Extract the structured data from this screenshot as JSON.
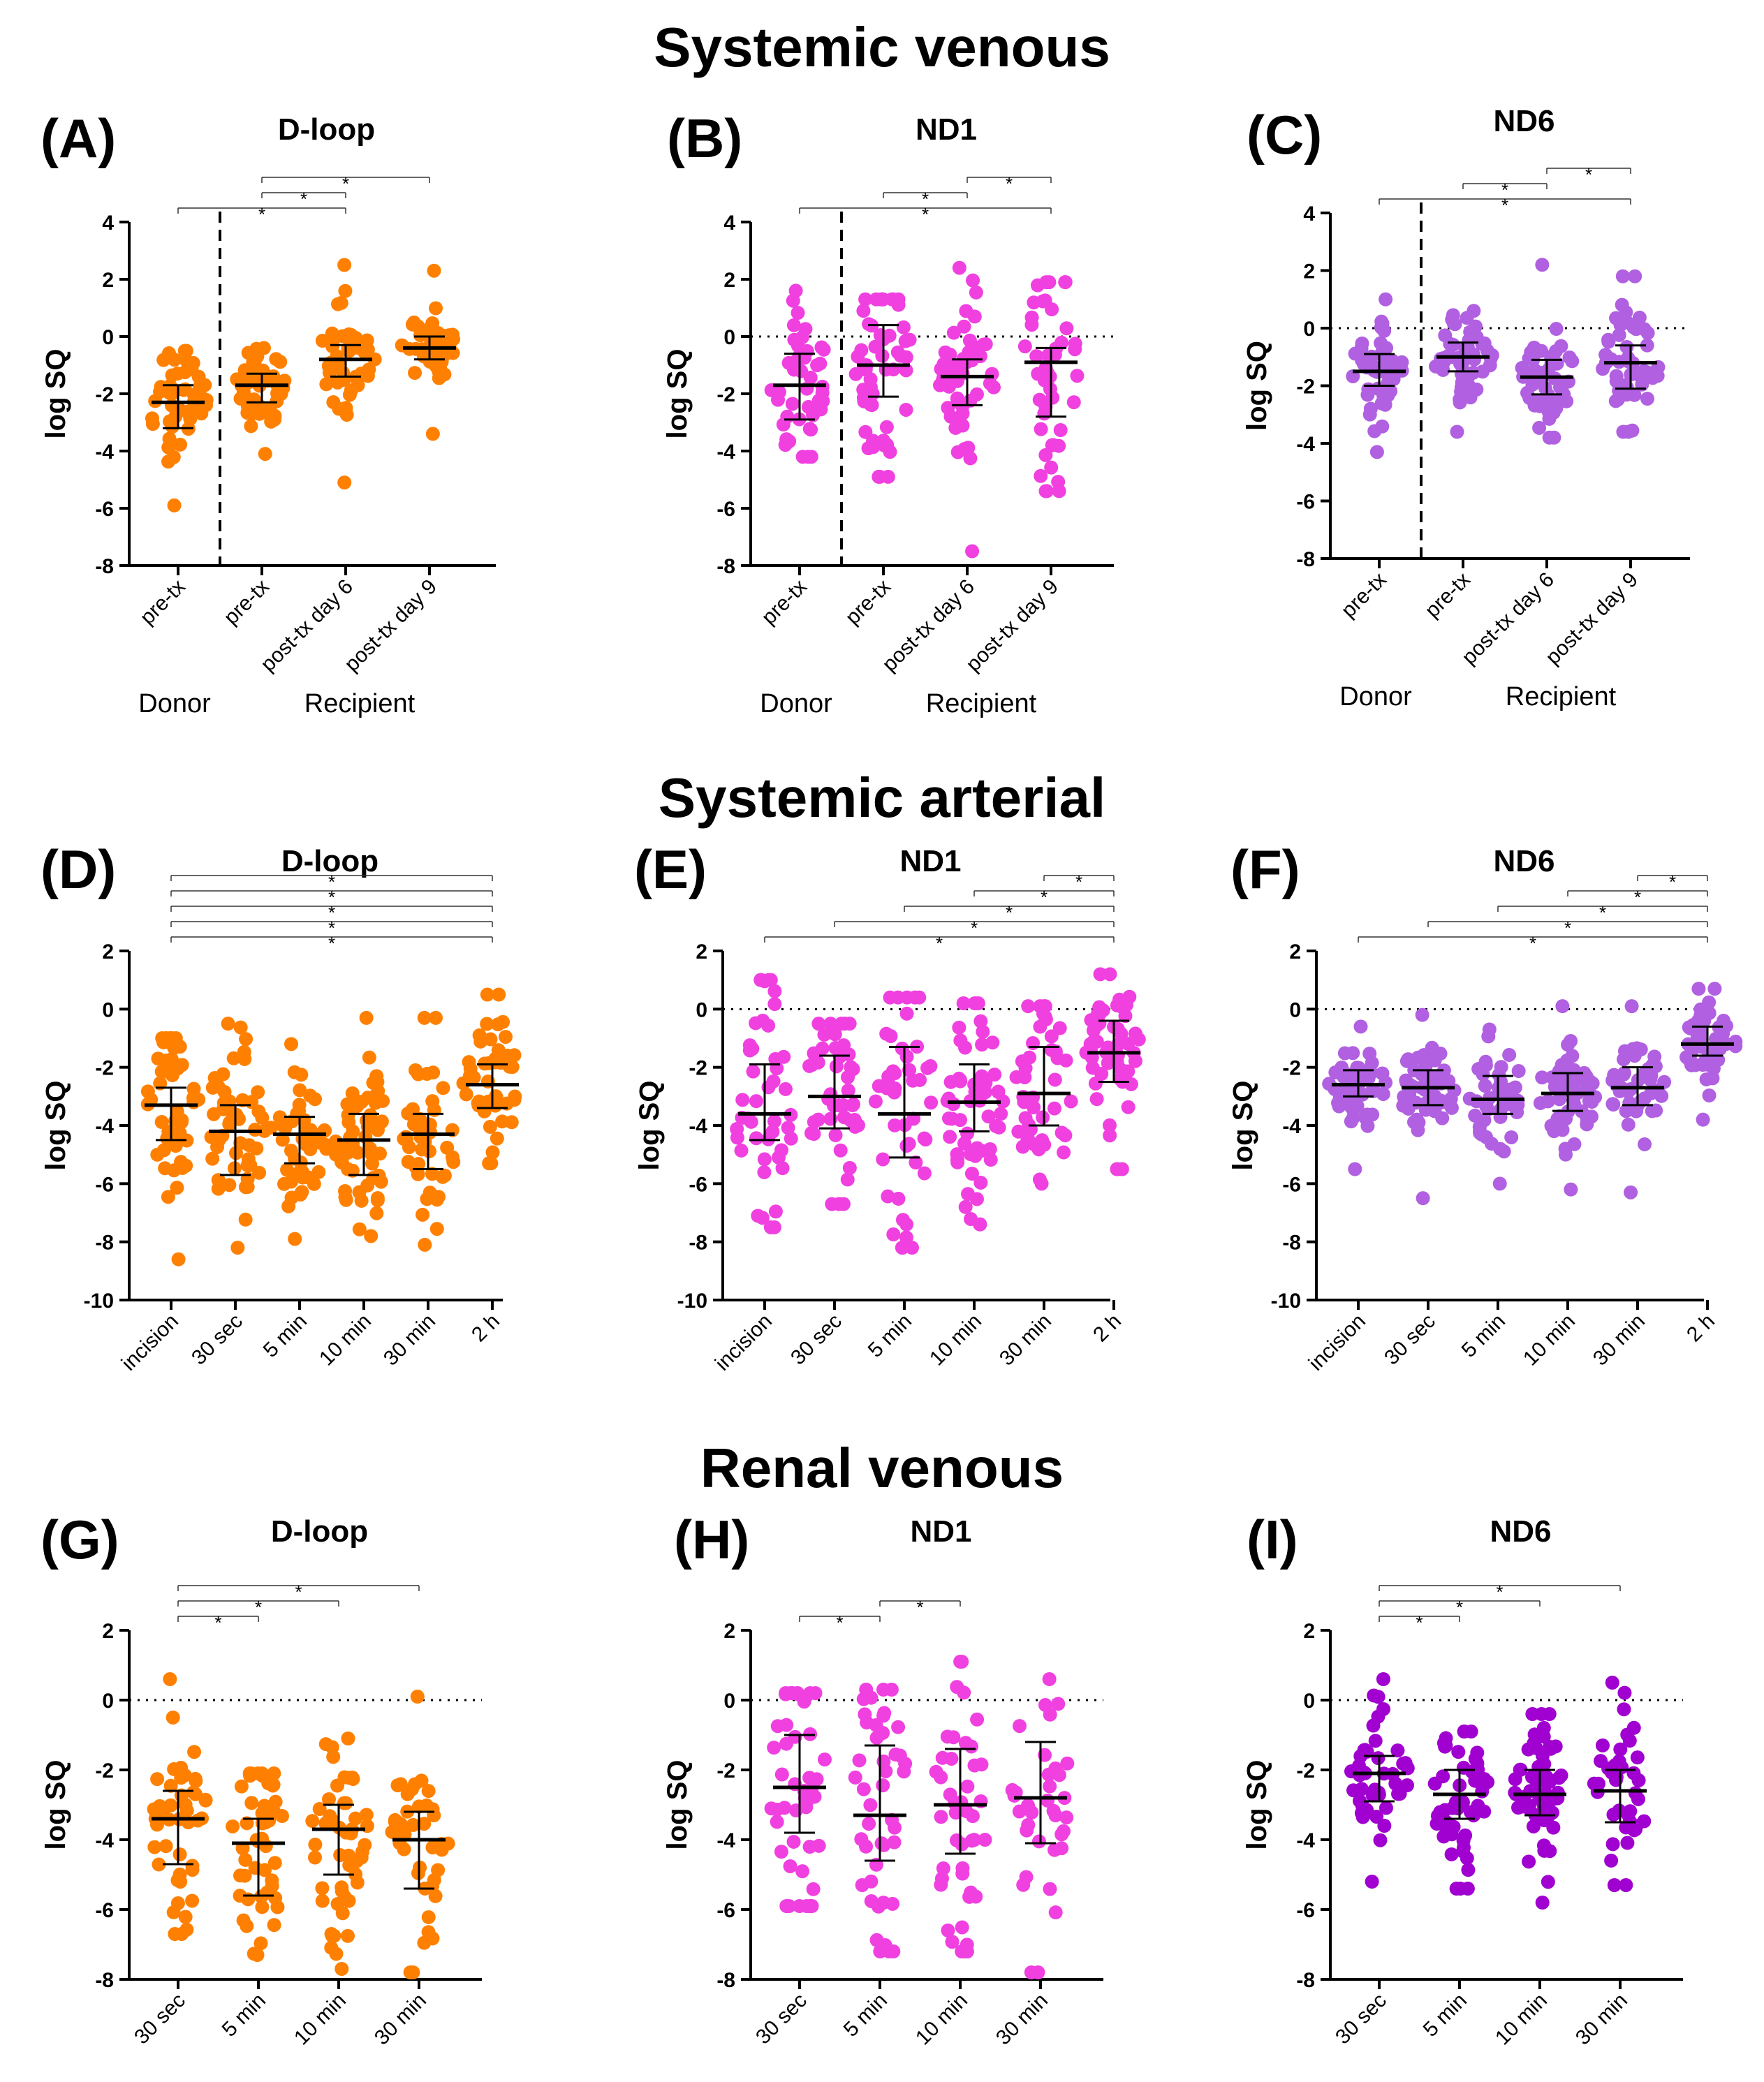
{
  "colors": {
    "orange": "#FF8000",
    "pink": "#F040E0",
    "purple": "#B060E0",
    "violet": "#A000D0"
  },
  "sections": [
    {
      "title": "Systemic venous"
    },
    {
      "title": "Systemic arterial"
    },
    {
      "title": "Renal venous"
    }
  ],
  "chart_data": [
    {
      "type": "scatter",
      "panel_label": "(A)",
      "title": "D-loop",
      "ylabel": "log SQ",
      "color": "orange",
      "ylim": [
        -8,
        4
      ],
      "yticks": [
        -8,
        -6,
        -4,
        -2,
        0,
        2,
        4
      ],
      "zero_line": false,
      "divider_after": 1,
      "group_labels": [
        {
          "text": "Donor",
          "col": 0
        },
        {
          "text": "Recipient",
          "col": 2
        }
      ],
      "categories": [
        "pre-tx",
        "pre-tx",
        "post-tx day 6",
        "post-tx day 9"
      ],
      "series": [
        {
          "name": "pre-tx",
          "median": -2.3,
          "q1": -3.2,
          "q3": -1.7,
          "min": -5.9,
          "max": -0.5,
          "n": 50
        },
        {
          "name": "pre-tx",
          "median": -1.7,
          "q1": -2.3,
          "q3": -1.3,
          "min": -4.1,
          "max": -0.4,
          "n": 55
        },
        {
          "name": "post-tx day 6",
          "median": -0.8,
          "q1": -1.4,
          "q3": -0.3,
          "min": -5.1,
          "max": 2.5,
          "n": 45
        },
        {
          "name": "post-tx day 9",
          "median": -0.4,
          "q1": -0.8,
          "q3": 0.0,
          "min": -3.4,
          "max": 2.3,
          "n": 45
        }
      ],
      "significance": [
        {
          "from": 0,
          "to": 2,
          "label": "*"
        },
        {
          "from": 1,
          "to": 2,
          "label": "*"
        },
        {
          "from": 1,
          "to": 3,
          "label": "*"
        }
      ]
    },
    {
      "type": "scatter",
      "panel_label": "(B)",
      "title": "ND1",
      "ylabel": "log SQ",
      "color": "pink",
      "ylim": [
        -8,
        4
      ],
      "yticks": [
        -8,
        -6,
        -4,
        -2,
        0,
        2,
        4
      ],
      "zero_line": true,
      "divider_after": 1,
      "group_labels": [
        {
          "text": "Donor",
          "col": 0
        },
        {
          "text": "Recipient",
          "col": 2
        }
      ],
      "categories": [
        "pre-tx",
        "pre-tx",
        "post-tx day 6",
        "post-tx day 9"
      ],
      "series": [
        {
          "name": "pre-tx",
          "median": -1.7,
          "q1": -2.9,
          "q3": -0.6,
          "min": -4.2,
          "max": 1.6,
          "n": 45
        },
        {
          "name": "pre-tx",
          "median": -1.0,
          "q1": -2.1,
          "q3": 0.4,
          "min": -4.9,
          "max": 1.3,
          "n": 55
        },
        {
          "name": "post-tx day 6",
          "median": -1.4,
          "q1": -2.4,
          "q3": -0.8,
          "min": -7.5,
          "max": 2.4,
          "n": 50
        },
        {
          "name": "post-tx day 9",
          "median": -0.9,
          "q1": -2.8,
          "q3": -0.4,
          "min": -5.4,
          "max": 1.9,
          "n": 45
        }
      ],
      "significance": [
        {
          "from": 0,
          "to": 3,
          "label": "*"
        },
        {
          "from": 1,
          "to": 2,
          "label": "*"
        },
        {
          "from": 2,
          "to": 3,
          "label": "*"
        }
      ]
    },
    {
      "type": "scatter",
      "panel_label": "(C)",
      "title": "ND6",
      "ylabel": "log SQ",
      "color": "purple",
      "ylim": [
        -8,
        4
      ],
      "yticks": [
        -8,
        -6,
        -4,
        -2,
        0,
        2,
        4
      ],
      "zero_line": true,
      "divider_after": 1,
      "group_labels": [
        {
          "text": "Donor",
          "col": 0
        },
        {
          "text": "Recipient",
          "col": 2
        }
      ],
      "categories": [
        "pre-tx",
        "pre-tx",
        "post-tx day 6",
        "post-tx day 9"
      ],
      "series": [
        {
          "name": "pre-tx",
          "median": -1.5,
          "q1": -2.0,
          "q3": -0.9,
          "min": -4.3,
          "max": 1.0,
          "n": 50
        },
        {
          "name": "pre-tx",
          "median": -1.0,
          "q1": -1.5,
          "q3": -0.5,
          "min": -3.6,
          "max": 0.6,
          "n": 55
        },
        {
          "name": "post-tx day 6",
          "median": -1.7,
          "q1": -2.3,
          "q3": -1.1,
          "min": -3.8,
          "max": 2.2,
          "n": 55
        },
        {
          "name": "post-tx day 9",
          "median": -1.2,
          "q1": -2.1,
          "q3": -0.6,
          "min": -3.6,
          "max": 1.8,
          "n": 50
        }
      ],
      "significance": [
        {
          "from": 0,
          "to": 3,
          "label": "*"
        },
        {
          "from": 1,
          "to": 2,
          "label": "*"
        },
        {
          "from": 2,
          "to": 3,
          "label": "*"
        }
      ]
    },
    {
      "type": "scatter",
      "panel_label": "(D)",
      "title": "D-loop",
      "ylabel": "log SQ",
      "color": "orange",
      "ylim": [
        -10,
        2
      ],
      "yticks": [
        -10,
        -8,
        -6,
        -4,
        -2,
        0,
        2
      ],
      "zero_line": false,
      "categories": [
        "incision",
        "30 sec",
        "5 min",
        "10 min",
        "30 min",
        "2 h"
      ],
      "series": [
        {
          "name": "incision",
          "median": -3.3,
          "q1": -4.5,
          "q3": -2.7,
          "min": -8.6,
          "max": -1.0,
          "n": 50
        },
        {
          "name": "30 sec",
          "median": -4.2,
          "q1": -5.7,
          "q3": -3.3,
          "min": -8.2,
          "max": -0.5,
          "n": 50
        },
        {
          "name": "5 min",
          "median": -4.3,
          "q1": -5.3,
          "q3": -3.7,
          "min": -7.9,
          "max": -1.2,
          "n": 45
        },
        {
          "name": "10 min",
          "median": -4.5,
          "q1": -5.7,
          "q3": -3.6,
          "min": -7.8,
          "max": -0.3,
          "n": 55
        },
        {
          "name": "30 min",
          "median": -4.3,
          "q1": -5.5,
          "q3": -3.6,
          "min": -8.1,
          "max": -0.3,
          "n": 45
        },
        {
          "name": "2 h",
          "median": -2.6,
          "q1": -3.4,
          "q3": -1.9,
          "min": -5.3,
          "max": 0.5,
          "n": 50
        }
      ],
      "significance": [
        {
          "from": 0,
          "to": 5,
          "label": "*"
        },
        {
          "from": 0,
          "to": 5,
          "label": "*"
        },
        {
          "from": 0,
          "to": 5,
          "label": "*"
        },
        {
          "from": 0,
          "to": 5,
          "label": "*"
        },
        {
          "from": 0,
          "to": 5,
          "label": "*"
        }
      ]
    },
    {
      "type": "scatter",
      "panel_label": "(E)",
      "title": "ND1",
      "ylabel": "log SQ",
      "color": "pink",
      "ylim": [
        -10,
        2
      ],
      "yticks": [
        -10,
        -8,
        -6,
        -4,
        -2,
        0,
        2
      ],
      "zero_line": true,
      "categories": [
        "incision",
        "30 sec",
        "5 min",
        "10 min",
        "30 min",
        "2 h"
      ],
      "series": [
        {
          "name": "incision",
          "median": -3.6,
          "q1": -4.5,
          "q3": -1.9,
          "min": -7.5,
          "max": 1.0,
          "n": 45
        },
        {
          "name": "30 sec",
          "median": -3.0,
          "q1": -4.1,
          "q3": -1.6,
          "min": -6.7,
          "max": -0.5,
          "n": 45
        },
        {
          "name": "5 min",
          "median": -3.6,
          "q1": -5.1,
          "q3": -1.3,
          "min": -8.2,
          "max": 0.4,
          "n": 45
        },
        {
          "name": "10 min",
          "median": -3.2,
          "q1": -4.2,
          "q3": -1.9,
          "min": -7.4,
          "max": 0.2,
          "n": 55
        },
        {
          "name": "30 min",
          "median": -2.9,
          "q1": -4.0,
          "q3": -1.3,
          "min": -6.0,
          "max": 0.1,
          "n": 45
        },
        {
          "name": "2 h",
          "median": -1.5,
          "q1": -2.5,
          "q3": -0.4,
          "min": -5.5,
          "max": 1.2,
          "n": 55
        }
      ],
      "significance": [
        {
          "from": 0,
          "to": 5,
          "label": "*"
        },
        {
          "from": 1,
          "to": 5,
          "label": "*"
        },
        {
          "from": 2,
          "to": 5,
          "label": "*"
        },
        {
          "from": 3,
          "to": 5,
          "label": "*"
        },
        {
          "from": 4,
          "to": 5,
          "label": "*"
        }
      ]
    },
    {
      "type": "scatter",
      "panel_label": "(F)",
      "title": "ND6",
      "ylabel": "log SQ",
      "color": "purple",
      "ylim": [
        -10,
        2
      ],
      "yticks": [
        -10,
        -8,
        -6,
        -4,
        -2,
        0,
        2
      ],
      "zero_line": true,
      "categories": [
        "incision",
        "30 sec",
        "5 min",
        "10 min",
        "30 min",
        "2 h"
      ],
      "series": [
        {
          "name": "incision",
          "median": -2.6,
          "q1": -3.0,
          "q3": -2.1,
          "min": -5.5,
          "max": -0.6,
          "n": 50
        },
        {
          "name": "30 sec",
          "median": -2.7,
          "q1": -3.3,
          "q3": -2.1,
          "min": -6.5,
          "max": -0.2,
          "n": 55
        },
        {
          "name": "5 min",
          "median": -3.1,
          "q1": -3.6,
          "q3": -2.3,
          "min": -6.0,
          "max": -0.7,
          "n": 45
        },
        {
          "name": "10 min",
          "median": -2.9,
          "q1": -3.5,
          "q3": -2.2,
          "min": -6.2,
          "max": 0.1,
          "n": 55
        },
        {
          "name": "30 min",
          "median": -2.7,
          "q1": -3.3,
          "q3": -2.0,
          "min": -6.3,
          "max": 0.1,
          "n": 45
        },
        {
          "name": "2 h",
          "median": -1.2,
          "q1": -1.6,
          "q3": -0.6,
          "min": -3.8,
          "max": 0.7,
          "n": 50
        }
      ],
      "significance": [
        {
          "from": 0,
          "to": 5,
          "label": "*"
        },
        {
          "from": 1,
          "to": 5,
          "label": "*"
        },
        {
          "from": 2,
          "to": 5,
          "label": "*"
        },
        {
          "from": 3,
          "to": 5,
          "label": "*"
        },
        {
          "from": 4,
          "to": 5,
          "label": "*"
        }
      ]
    },
    {
      "type": "scatter",
      "panel_label": "(G)",
      "title": "D-loop",
      "ylabel": "log SQ",
      "color": "orange",
      "ylim": [
        -8,
        2
      ],
      "yticks": [
        -8,
        -6,
        -4,
        -2,
        0,
        2
      ],
      "zero_line": true,
      "categories": [
        "30 sec",
        "5 min",
        "10 min",
        "30 min"
      ],
      "series": [
        {
          "name": "30 sec",
          "median": -3.4,
          "q1": -4.7,
          "q3": -2.6,
          "min": -6.7,
          "max": 0.6,
          "n": 45
        },
        {
          "name": "5 min",
          "median": -4.1,
          "q1": -5.6,
          "q3": -3.4,
          "min": -7.3,
          "max": -2.1,
          "n": 50
        },
        {
          "name": "10 min",
          "median": -3.7,
          "q1": -5.0,
          "q3": -3.0,
          "min": -7.7,
          "max": -1.1,
          "n": 50
        },
        {
          "name": "30 min",
          "median": -4.0,
          "q1": -5.4,
          "q3": -3.2,
          "min": -7.8,
          "max": 0.1,
          "n": 40
        }
      ],
      "significance": [
        {
          "from": 0,
          "to": 1,
          "label": "*"
        },
        {
          "from": 0,
          "to": 2,
          "label": "*"
        },
        {
          "from": 0,
          "to": 3,
          "label": "*"
        }
      ]
    },
    {
      "type": "scatter",
      "panel_label": "(H)",
      "title": "ND1",
      "ylabel": "log SQ",
      "color": "pink",
      "ylim": [
        -8,
        2
      ],
      "yticks": [
        -8,
        -6,
        -4,
        -2,
        0,
        2
      ],
      "zero_line": true,
      "categories": [
        "30 sec",
        "5 min",
        "10 min",
        "30 min"
      ],
      "series": [
        {
          "name": "30 sec",
          "median": -2.5,
          "q1": -3.8,
          "q3": -1.0,
          "min": -5.9,
          "max": 0.2,
          "n": 45
        },
        {
          "name": "5 min",
          "median": -3.3,
          "q1": -4.6,
          "q3": -1.3,
          "min": -7.2,
          "max": 0.3,
          "n": 45
        },
        {
          "name": "10 min",
          "median": -3.0,
          "q1": -4.4,
          "q3": -1.4,
          "min": -7.2,
          "max": 1.1,
          "n": 45
        },
        {
          "name": "30 min",
          "median": -2.8,
          "q1": -4.1,
          "q3": -1.2,
          "min": -7.8,
          "max": 0.6,
          "n": 35
        }
      ],
      "significance": [
        {
          "from": 0,
          "to": 1,
          "label": "*"
        },
        {
          "from": 1,
          "to": 2,
          "label": "*"
        }
      ]
    },
    {
      "type": "scatter",
      "panel_label": "(I)",
      "title": "ND6",
      "ylabel": "log SQ",
      "color": "violet",
      "ylim": [
        -8,
        2
      ],
      "yticks": [
        -8,
        -6,
        -4,
        -2,
        0,
        2
      ],
      "zero_line": true,
      "categories": [
        "30 sec",
        "5 min",
        "10 min",
        "30 min"
      ],
      "series": [
        {
          "name": "30 sec",
          "median": -2.1,
          "q1": -2.9,
          "q3": -1.6,
          "min": -5.2,
          "max": 0.6,
          "n": 45
        },
        {
          "name": "5 min",
          "median": -2.7,
          "q1": -3.4,
          "q3": -2.0,
          "min": -5.4,
          "max": -0.9,
          "n": 50
        },
        {
          "name": "10 min",
          "median": -2.7,
          "q1": -3.3,
          "q3": -2.0,
          "min": -5.8,
          "max": -0.4,
          "n": 55
        },
        {
          "name": "30 min",
          "median": -2.6,
          "q1": -3.5,
          "q3": -2.0,
          "min": -5.3,
          "max": 0.5,
          "n": 40
        }
      ],
      "significance": [
        {
          "from": 0,
          "to": 1,
          "label": "*"
        },
        {
          "from": 0,
          "to": 2,
          "label": "*"
        },
        {
          "from": 0,
          "to": 3,
          "label": "*"
        }
      ]
    }
  ]
}
